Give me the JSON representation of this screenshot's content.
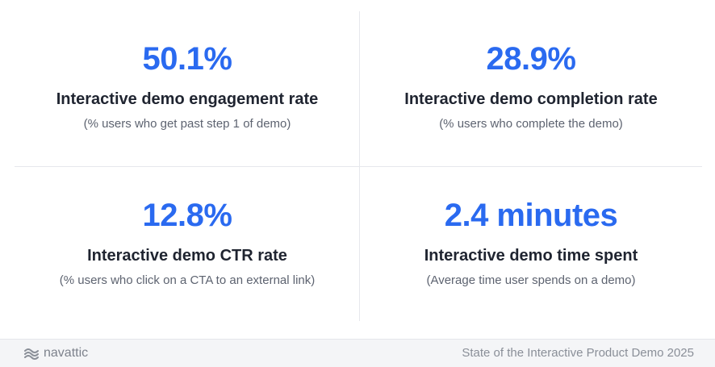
{
  "stats": [
    {
      "value": "50.1%",
      "label": "Interactive demo engagement rate",
      "sub": "(% users who get past step 1 of demo)"
    },
    {
      "value": "28.9%",
      "label": "Interactive demo completion rate",
      "sub": "(% users who complete the demo)"
    },
    {
      "value": "12.8%",
      "label": "Interactive demo CTR rate",
      "sub": "(% users who click on a CTA to an external link)"
    },
    {
      "value": "2.4 minutes",
      "label": "Interactive demo time spent",
      "sub": "(Average time user spends on a demo)"
    }
  ],
  "footer": {
    "brand": "navattic",
    "brand_icon": "navattic-wave-logo-icon",
    "credit": "State of the Interactive Product Demo 2025"
  },
  "colors": {
    "accent": "#2a6af0",
    "label": "#1f2430",
    "sub": "#5d6370",
    "divider": "#e6e8ec",
    "footer_bg": "#f4f5f7"
  }
}
